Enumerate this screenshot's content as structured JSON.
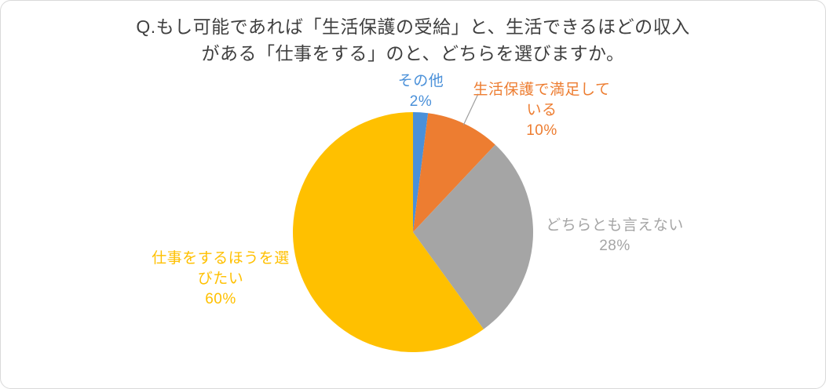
{
  "chart_data": {
    "type": "pie",
    "title": "Q.もし可能であれば「生活保護の受給」と、生活できるほどの収入がある「仕事をする」のと、どちらを選びますか。",
    "title_lines": [
      "Q.もし可能であれば「生活保護の受給」と、生活できるほどの収入",
      "がある「仕事をする」のと、どちらを選びますか。"
    ],
    "unit": "%",
    "total": 100,
    "start_angle_deg": 0,
    "direction": "clockwise",
    "legend_position": "none",
    "slices": [
      {
        "id": "other",
        "label": "その他",
        "value": 2,
        "pct": "2%",
        "color": "#4a90d9",
        "label_lines": [
          "その他",
          "2%"
        ]
      },
      {
        "id": "welfare-satisfied",
        "label": "生活保護で満足している",
        "value": 10,
        "pct": "10%",
        "color": "#ed7d31",
        "leader": true,
        "label_lines": [
          "生活保護で満足して",
          "いる",
          "10%"
        ]
      },
      {
        "id": "neither",
        "label": "どちらとも言えない",
        "value": 28,
        "pct": "28%",
        "color": "#a5a5a5",
        "label_lines": [
          "どちらとも言えない",
          "28%"
        ]
      },
      {
        "id": "choose-work",
        "label": "仕事をするほうを選びたい",
        "value": 60,
        "pct": "60%",
        "color": "#ffc000",
        "label_lines": [
          "仕事をするほうを選",
          "びたい",
          "60%"
        ]
      }
    ]
  }
}
